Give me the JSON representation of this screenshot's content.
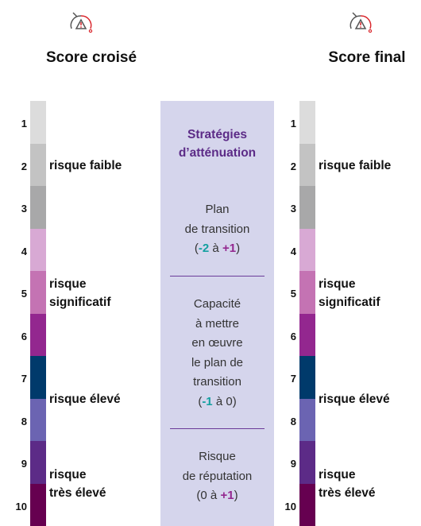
{
  "columns": [
    {
      "title": "Score croisé",
      "levels": [
        1,
        2,
        3,
        4,
        5,
        6,
        7,
        8,
        9,
        10
      ],
      "colors": [
        "#dcdcdc",
        "#c3c3c3",
        "#a8a8a9",
        "#d8a9d4",
        "#c473b3",
        "#93278f",
        "#003a6b",
        "#6b64b2",
        "#5c2b87",
        "#660050"
      ],
      "labels": [
        [
          "risque faible"
        ],
        [
          "risque",
          "significatif"
        ],
        [
          "risque élevé"
        ],
        [
          "risque",
          "très élevé"
        ]
      ]
    },
    {
      "title": "Score final",
      "levels": [
        1,
        2,
        3,
        4,
        5,
        6,
        7,
        8,
        9,
        10
      ],
      "colors": [
        "#dcdcdc",
        "#c3c3c3",
        "#a8a8a9",
        "#d8a9d4",
        "#c473b3",
        "#93278f",
        "#003a6b",
        "#6b64b2",
        "#5c2b87",
        "#660050"
      ],
      "labels": [
        [
          "risque faible"
        ],
        [
          "risque",
          "significatif"
        ],
        [
          "risque élevé"
        ],
        [
          "risque",
          "très élevé"
        ]
      ]
    }
  ],
  "strategies": {
    "title": [
      "Stratégies",
      "d’atténuation"
    ],
    "items": [
      {
        "lines": [
          "Plan",
          "de transition"
        ],
        "range": [
          "(",
          "-2",
          " à ",
          "+1",
          ")"
        ]
      },
      {
        "lines": [
          "Capacité",
          "à mettre",
          "en œuvre",
          "le plan de",
          "transition"
        ],
        "range": [
          "(",
          "-1",
          " à ",
          "0",
          ")"
        ]
      },
      {
        "lines": [
          "Risque",
          "de réputation"
        ],
        "range": [
          "(",
          "0",
          " à ",
          "+1",
          ")"
        ]
      }
    ]
  }
}
